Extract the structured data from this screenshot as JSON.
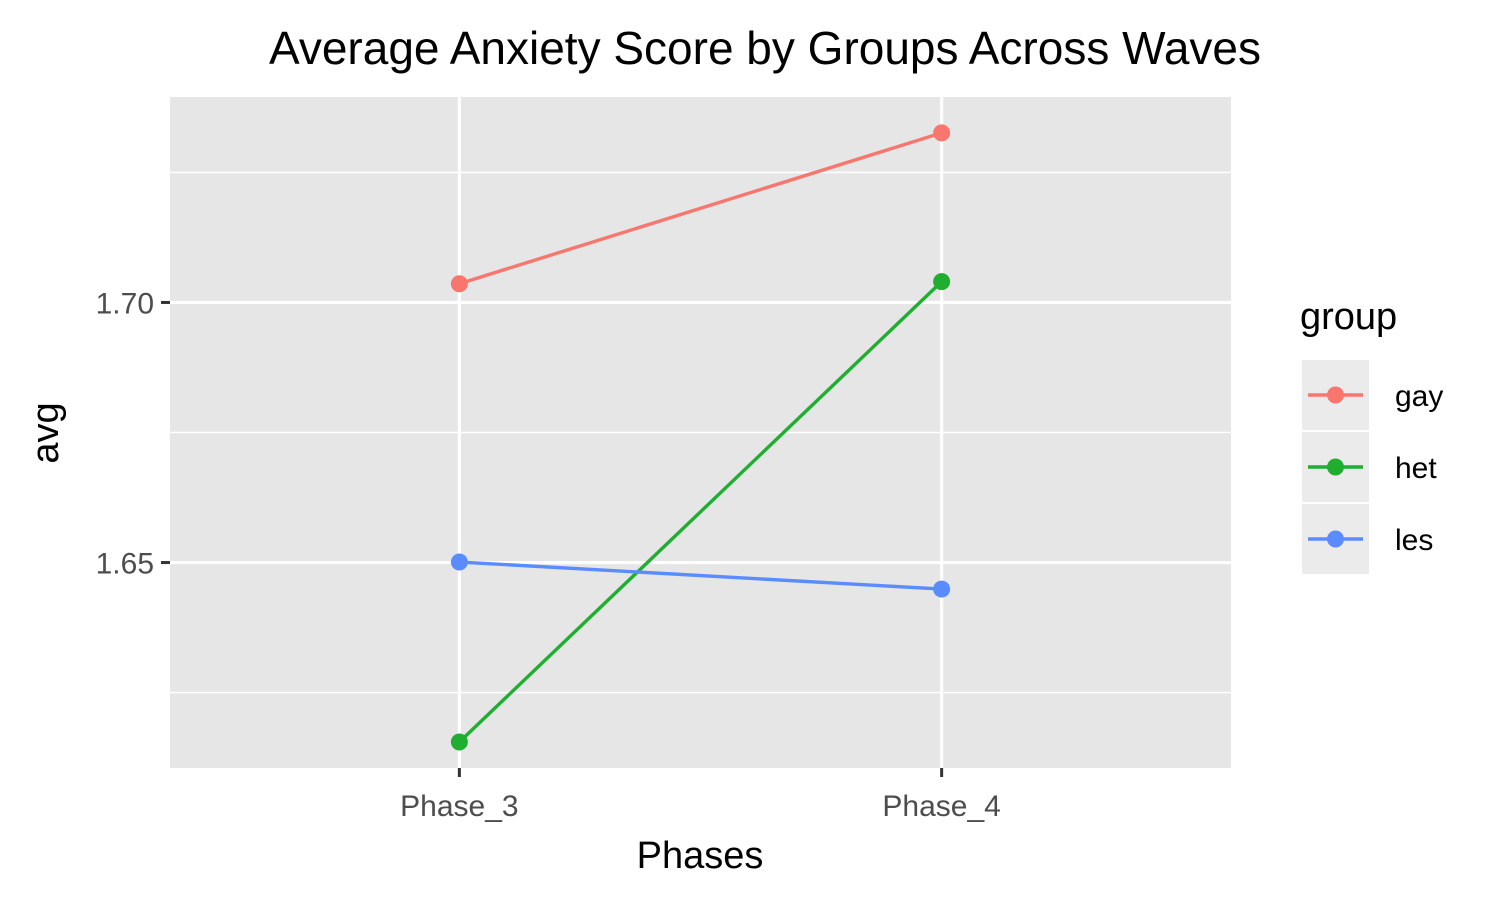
{
  "chart_data": {
    "type": "line",
    "title": "Average Anxiety Score by Groups Across Waves",
    "xlabel": "Phases",
    "ylabel": "avg",
    "categories": [
      "Phase_3",
      "Phase_4"
    ],
    "yticks": [
      1.65,
      1.7
    ],
    "ytick_labels": [
      "1.65",
      "1.70"
    ],
    "ylim": [
      1.6105,
      1.7395
    ],
    "grid": true,
    "legend": {
      "title": "group",
      "position": "right",
      "entries": [
        "gay",
        "het",
        "les"
      ]
    },
    "series": [
      {
        "name": "gay",
        "color": "#F8766D",
        "values": [
          1.7036,
          1.7326
        ]
      },
      {
        "name": "het",
        "color": "#1FAE2F",
        "values": [
          1.6155,
          1.704
        ]
      },
      {
        "name": "les",
        "color": "#5B8CFF",
        "values": [
          1.6501,
          1.6449
        ]
      }
    ],
    "colors": {
      "panel_background": "#E6E6E6",
      "gridline": "#FFFFFF",
      "legend_key_background": "#EBEBEB",
      "tick_color": "#333333"
    }
  }
}
